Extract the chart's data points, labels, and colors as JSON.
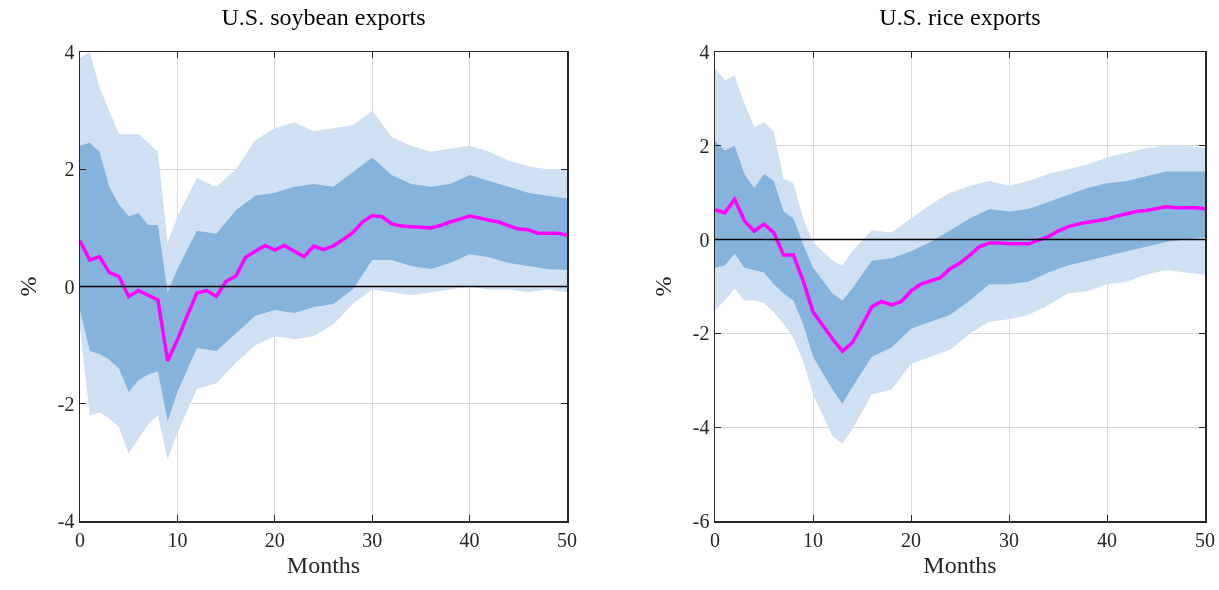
{
  "chart_data": [
    {
      "type": "line",
      "title": "U.S. soybean exports",
      "xlabel": "Months",
      "ylabel": "%",
      "xlim": [
        0,
        50
      ],
      "xticks": [
        0,
        10,
        20,
        30,
        40,
        50
      ],
      "ylim": [
        -4,
        4
      ],
      "yticks": [
        -4,
        -2,
        0,
        2,
        4
      ],
      "grid": true,
      "ref_lines": [
        {
          "axis": "y",
          "value": 0,
          "color": "#000000"
        }
      ],
      "series": [
        {
          "color": "#cfe0f2",
          "x": [
            0,
            1,
            2,
            3,
            4,
            5,
            6,
            7,
            8,
            9,
            10,
            12,
            14,
            16,
            18,
            20,
            22,
            24,
            26,
            28,
            30,
            32,
            34,
            36,
            38,
            40,
            42,
            44,
            46,
            48,
            50
          ],
          "values": [
            null,
            null,
            null,
            null,
            null,
            null,
            null,
            null,
            null,
            null,
            null,
            null,
            null,
            null,
            null,
            null,
            null,
            null,
            null,
            null,
            null,
            null,
            null,
            null,
            null,
            null,
            null,
            null,
            null,
            null,
            null
          ],
          "upper": [
            3.9,
            4.0,
            3.4,
            3.0,
            2.6,
            2.6,
            2.6,
            2.45,
            2.3,
            0.75,
            1.2,
            1.85,
            1.7,
            2.0,
            2.5,
            2.7,
            2.8,
            2.65,
            2.7,
            2.75,
            3.0,
            2.55,
            2.4,
            2.3,
            2.35,
            2.4,
            2.3,
            2.15,
            2.05,
            2.0,
            2.0
          ],
          "lower": [
            -0.7,
            -2.2,
            -2.15,
            -2.25,
            -2.4,
            -2.85,
            -2.6,
            -2.35,
            -2.2,
            -2.95,
            -2.5,
            -1.75,
            -1.65,
            -1.3,
            -1.0,
            -0.85,
            -0.9,
            -0.85,
            -0.65,
            -0.3,
            -0.05,
            -0.1,
            -0.15,
            -0.1,
            -0.05,
            0.0,
            -0.05,
            -0.05,
            -0.1,
            -0.05,
            -0.1
          ]
        },
        {
          "color": "#86b3dc",
          "x": [
            0,
            1,
            2,
            3,
            4,
            5,
            6,
            7,
            8,
            9,
            10,
            12,
            14,
            16,
            18,
            20,
            22,
            24,
            26,
            28,
            30,
            32,
            34,
            36,
            38,
            40,
            42,
            44,
            46,
            48,
            50
          ],
          "values": [
            null,
            null,
            null,
            null,
            null,
            null,
            null,
            null,
            null,
            null,
            null,
            null,
            null,
            null,
            null,
            null,
            null,
            null,
            null,
            null,
            null,
            null,
            null,
            null,
            null,
            null,
            null,
            null,
            null,
            null,
            null
          ],
          "upper": [
            2.4,
            2.45,
            2.3,
            1.7,
            1.4,
            1.2,
            1.25,
            1.05,
            1.05,
            -0.1,
            0.3,
            0.95,
            0.9,
            1.3,
            1.55,
            1.6,
            1.7,
            1.75,
            1.7,
            1.95,
            2.2,
            1.9,
            1.75,
            1.7,
            1.75,
            1.9,
            1.8,
            1.7,
            1.6,
            1.55,
            1.5
          ],
          "lower": [
            -0.4,
            -1.1,
            -1.15,
            -1.25,
            -1.4,
            -1.8,
            -1.6,
            -1.5,
            -1.45,
            -2.3,
            -1.8,
            -1.05,
            -1.1,
            -0.8,
            -0.5,
            -0.4,
            -0.45,
            -0.35,
            -0.3,
            -0.05,
            0.45,
            0.45,
            0.35,
            0.3,
            0.4,
            0.55,
            0.5,
            0.4,
            0.35,
            0.3,
            0.28
          ]
        },
        {
          "type": "line",
          "color": "#ff00ff",
          "x": [
            0,
            1,
            2,
            3,
            4,
            5,
            6,
            7,
            8,
            9,
            10,
            11,
            12,
            13,
            14,
            15,
            16,
            17,
            18,
            19,
            20,
            21,
            22,
            23,
            24,
            25,
            26,
            27,
            28,
            29,
            30,
            31,
            32,
            33,
            34,
            35,
            36,
            37,
            38,
            39,
            40,
            41,
            42,
            43,
            44,
            45,
            46,
            47,
            48,
            49,
            50
          ],
          "values": [
            0.78,
            0.45,
            0.51,
            0.24,
            0.17,
            -0.17,
            -0.07,
            -0.15,
            -0.23,
            -1.27,
            -0.91,
            -0.5,
            -0.11,
            -0.07,
            -0.17,
            0.09,
            0.18,
            0.5,
            0.6,
            0.7,
            0.62,
            0.7,
            0.6,
            0.51,
            0.69,
            0.63,
            0.69,
            0.8,
            0.92,
            1.1,
            1.21,
            1.19,
            1.07,
            1.03,
            1.02,
            1.01,
            1.0,
            1.04,
            1.1,
            1.15,
            1.2,
            1.17,
            1.13,
            1.1,
            1.04,
            0.98,
            0.97,
            0.91,
            0.91,
            0.91,
            0.88
          ]
        }
      ]
    },
    {
      "type": "line",
      "title": "U.S. rice exports",
      "xlabel": "Months",
      "ylabel": "%",
      "xlim": [
        0,
        50
      ],
      "xticks": [
        0,
        10,
        20,
        30,
        40,
        50
      ],
      "ylim": [
        -6,
        4
      ],
      "yticks": [
        -6,
        -4,
        -2,
        0,
        2,
        4
      ],
      "grid": true,
      "ref_lines": [
        {
          "axis": "y",
          "value": 0,
          "color": "#000000"
        }
      ],
      "series": [
        {
          "color": "#cfe0f2",
          "x": [
            0,
            1,
            2,
            3,
            4,
            5,
            6,
            7,
            8,
            9,
            10,
            12,
            13,
            14,
            16,
            18,
            20,
            22,
            24,
            26,
            28,
            30,
            32,
            34,
            36,
            38,
            40,
            42,
            44,
            46,
            48,
            50
          ],
          "values": [
            null,
            null,
            null,
            null,
            null,
            null,
            null,
            null,
            null,
            null,
            null,
            null,
            null,
            null,
            null,
            null,
            null,
            null,
            null,
            null,
            null,
            null,
            null,
            null,
            null,
            null,
            null,
            null,
            null,
            null,
            null,
            null
          ],
          "upper": [
            3.65,
            3.4,
            3.5,
            2.9,
            2.4,
            2.5,
            2.3,
            1.3,
            1.2,
            0.45,
            -0.05,
            -0.45,
            -0.55,
            -0.25,
            0.2,
            0.15,
            0.45,
            0.75,
            1.0,
            1.15,
            1.25,
            1.15,
            1.25,
            1.4,
            1.5,
            1.6,
            1.75,
            1.85,
            1.95,
            2.0,
            2.0,
            1.95
          ],
          "lower": [
            -1.5,
            -1.3,
            -1.05,
            -1.3,
            -1.3,
            -1.35,
            -1.55,
            -1.8,
            -2.1,
            -2.6,
            -3.3,
            -4.2,
            -4.35,
            -4.05,
            -3.3,
            -3.2,
            -2.65,
            -2.5,
            -2.35,
            -2.0,
            -1.75,
            -1.7,
            -1.6,
            -1.4,
            -1.15,
            -1.1,
            -0.95,
            -0.9,
            -0.75,
            -0.65,
            -0.7,
            -0.75
          ]
        },
        {
          "color": "#86b3dc",
          "x": [
            0,
            1,
            2,
            3,
            4,
            5,
            6,
            7,
            8,
            9,
            10,
            12,
            13,
            14,
            16,
            18,
            20,
            22,
            24,
            26,
            28,
            30,
            32,
            34,
            36,
            38,
            40,
            42,
            44,
            46,
            48,
            50
          ],
          "values": [
            null,
            null,
            null,
            null,
            null,
            null,
            null,
            null,
            null,
            null,
            null,
            null,
            null,
            null,
            null,
            null,
            null,
            null,
            null,
            null,
            null,
            null,
            null,
            null,
            null,
            null,
            null,
            null,
            null,
            null,
            null,
            null
          ],
          "upper": [
            2.1,
            1.9,
            2.0,
            1.4,
            1.1,
            1.4,
            1.25,
            0.6,
            0.45,
            -0.1,
            -0.6,
            -1.15,
            -1.3,
            -1.05,
            -0.45,
            -0.4,
            -0.25,
            -0.05,
            0.2,
            0.45,
            0.65,
            0.6,
            0.65,
            0.8,
            0.95,
            1.1,
            1.2,
            1.25,
            1.35,
            1.45,
            1.45,
            1.45
          ],
          "lower": [
            -0.6,
            -0.55,
            -0.3,
            -0.6,
            -0.65,
            -0.7,
            -0.95,
            -1.15,
            -1.3,
            -1.8,
            -2.5,
            -3.2,
            -3.5,
            -3.15,
            -2.5,
            -2.3,
            -1.9,
            -1.75,
            -1.6,
            -1.3,
            -0.95,
            -0.95,
            -0.9,
            -0.7,
            -0.55,
            -0.45,
            -0.35,
            -0.25,
            -0.15,
            -0.05,
            0.0,
            0.05
          ]
        },
        {
          "type": "line",
          "color": "#ff00ff",
          "x": [
            0,
            1,
            2,
            3,
            4,
            5,
            6,
            7,
            8,
            9,
            10,
            11,
            12,
            13,
            14,
            15,
            16,
            17,
            18,
            19,
            20,
            21,
            22,
            23,
            24,
            25,
            26,
            27,
            28,
            29,
            30,
            31,
            32,
            33,
            34,
            35,
            36,
            37,
            38,
            39,
            40,
            41,
            42,
            43,
            44,
            45,
            46,
            47,
            48,
            49,
            50
          ],
          "values": [
            0.64,
            0.57,
            0.86,
            0.4,
            0.18,
            0.33,
            0.15,
            -0.33,
            -0.33,
            -0.88,
            -1.54,
            -1.83,
            -2.12,
            -2.38,
            -2.2,
            -1.83,
            -1.43,
            -1.32,
            -1.39,
            -1.32,
            -1.1,
            -0.95,
            -0.88,
            -0.81,
            -0.62,
            -0.5,
            -0.33,
            -0.15,
            -0.07,
            -0.07,
            -0.09,
            -0.09,
            -0.09,
            -0.01,
            0.06,
            0.18,
            0.27,
            0.33,
            0.37,
            0.4,
            0.44,
            0.5,
            0.55,
            0.6,
            0.62,
            0.66,
            0.7,
            0.68,
            0.68,
            0.68,
            0.66
          ]
        }
      ]
    }
  ]
}
